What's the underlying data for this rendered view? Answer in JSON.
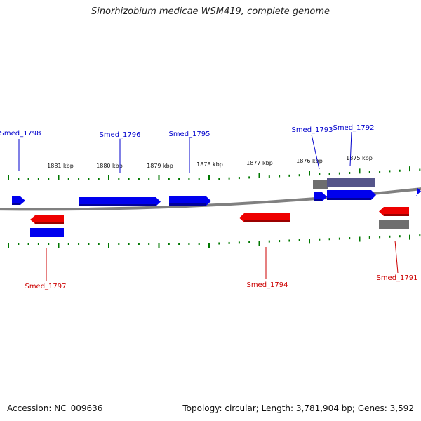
{
  "title": "Sinorhizobium medicae WSM419, complete genome",
  "footer": {
    "accession": "Accession: NC_009636",
    "summary": "Topology: circular; Length: 3,781,904 bp; Genes: 3,592"
  },
  "scale_labels": [
    "1881 kbp",
    "1880 kbp",
    "1879 kbp",
    "1878 kbp",
    "1877 kbp",
    "1876 kbp",
    "1875 kbp"
  ],
  "genes": [
    {
      "name": "Smed_1798",
      "strand": "+"
    },
    {
      "name": "Smed_1797",
      "strand": "-"
    },
    {
      "name": "Smed_1796",
      "strand": "+"
    },
    {
      "name": "Smed_1795",
      "strand": "+"
    },
    {
      "name": "Smed_1794",
      "strand": "-"
    },
    {
      "name": "Smed_1793",
      "strand": "+"
    },
    {
      "name": "Smed_1792",
      "strand": "+"
    },
    {
      "name": "Smed_1791",
      "strand": "-"
    }
  ],
  "colors": {
    "forward_gene": "#0000ee",
    "reverse_gene": "#ee0000",
    "feature_gray": "#6e6e6e",
    "feature_purple": "#55558a",
    "forward_label": "#0000cc",
    "reverse_label": "#cc0000",
    "tick": "#007700",
    "backbone": "#808080"
  }
}
